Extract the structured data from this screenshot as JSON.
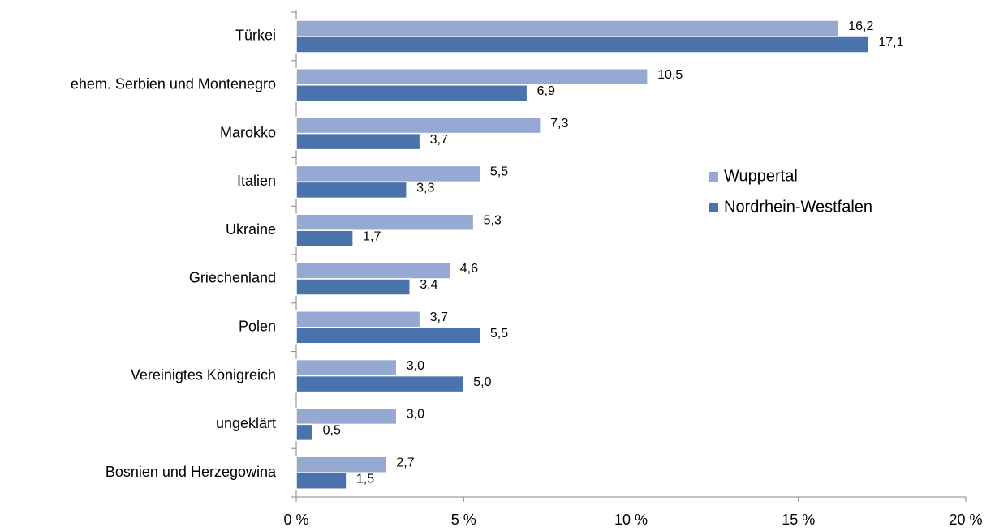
{
  "chart_data": {
    "type": "bar",
    "orientation": "horizontal",
    "categories": [
      "Türkei",
      "ehem. Serbien und Montenegro",
      "Marokko",
      "Italien",
      "Ukraine",
      "Griechenland",
      "Polen",
      "Vereinigtes Königreich",
      "ungeklärt",
      "Bosnien und Herzegowina"
    ],
    "series": [
      {
        "name": "Wuppertal",
        "color": "#95a9d3",
        "values": [
          16.2,
          10.5,
          7.3,
          5.5,
          5.3,
          4.6,
          3.7,
          3.0,
          3.0,
          2.7
        ],
        "value_labels": [
          "16,2",
          "10,5",
          "7,3",
          "5,5",
          "5,3",
          "4,6",
          "3,7",
          "3,0",
          "3,0",
          "2,7"
        ]
      },
      {
        "name": "Nordrhein-Westfalen",
        "color": "#4a72ab",
        "values": [
          17.1,
          6.9,
          3.7,
          3.3,
          1.7,
          3.4,
          5.5,
          5.0,
          0.5,
          1.5
        ],
        "value_labels": [
          "17,1",
          "6,9",
          "3,7",
          "3,3",
          "1,7",
          "3,4",
          "5,5",
          "5,0",
          "0,5",
          "1,5"
        ]
      }
    ],
    "xlim": [
      0,
      20
    ],
    "xticks": [
      {
        "value": 0,
        "label": "0 %"
      },
      {
        "value": 5,
        "label": "5 %"
      },
      {
        "value": 10,
        "label": "10 %"
      },
      {
        "value": 15,
        "label": "15 %"
      },
      {
        "value": 20,
        "label": "20 %"
      }
    ],
    "legend": "right"
  }
}
